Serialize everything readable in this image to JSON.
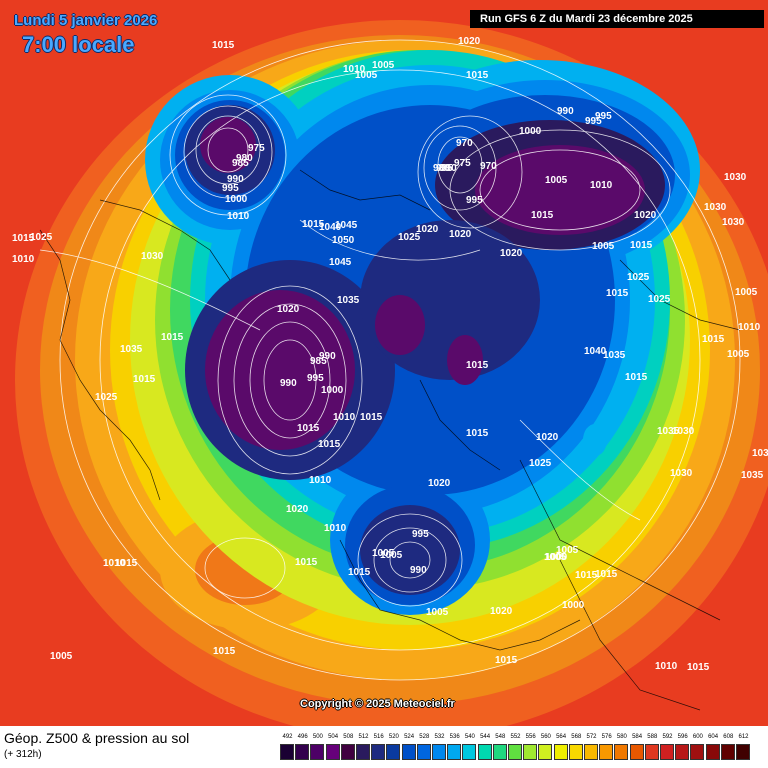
{
  "header": {
    "date_label": "Lundi 5 janvier 2026",
    "time_label": "7:00 locale",
    "run_label": "Run GFS 6 Z du Mardi 23 décembre 2025"
  },
  "footer": {
    "title": "Géop. Z500 & pression au sol",
    "subtitle": "(+ 312h)",
    "copyright": "Copyright © 2025 Meteociel.fr"
  },
  "legend": {
    "labels": [
      "492",
      "496",
      "500",
      "504",
      "508",
      "512",
      "516",
      "520",
      "524",
      "528",
      "532",
      "536",
      "540",
      "544",
      "548",
      "552",
      "556",
      "560",
      "564",
      "568",
      "572",
      "576",
      "580",
      "584",
      "588",
      "592",
      "596",
      "600",
      "604",
      "608",
      "612"
    ],
    "colors": [
      "#1a0033",
      "#33004d",
      "#4d0066",
      "#66007a",
      "#400040",
      "#2a1a5e",
      "#1e2a80",
      "#0a3aa0",
      "#0050c8",
      "#0066e0",
      "#0088ee",
      "#00a8f0",
      "#00c8e0",
      "#00d8b0",
      "#20d880",
      "#60e040",
      "#a0e830",
      "#d0f020",
      "#f0f000",
      "#f8d800",
      "#f8b800",
      "#f89800",
      "#f07800",
      "#e85800",
      "#e03820",
      "#d02020",
      "#b81818",
      "#a01010",
      "#880808",
      "#600000",
      "#400000"
    ]
  },
  "pressure_labels": [
    "1015",
    "1020",
    "1010",
    "1005",
    "1005",
    "1015",
    "1000",
    "990",
    "995",
    "995",
    "975",
    "980",
    "985",
    "990",
    "995",
    "1000",
    "1010",
    "970",
    "975",
    "980",
    "985",
    "990",
    "970",
    "995",
    "1005",
    "1010",
    "1015",
    "1020",
    "1030",
    "1015",
    "1030",
    "1020",
    "1015",
    "1040",
    "1050",
    "1045",
    "1025",
    "1020",
    "1030",
    "1015",
    "1025",
    "1010",
    "1030",
    "1015",
    "1035",
    "1005",
    "1010",
    "1005",
    "1015",
    "1005",
    "1020",
    "990",
    "985",
    "990",
    "995",
    "1000",
    "1010",
    "1015",
    "1025",
    "1015",
    "1025",
    "1040",
    "1035",
    "1045",
    "1035",
    "1015",
    "1020",
    "1015",
    "1025",
    "1035",
    "1030",
    "1020",
    "1025",
    "1015",
    "1030",
    "1035",
    "1035",
    "1015",
    "1020",
    "995",
    "1005",
    "1000",
    "990",
    "1015",
    "1005",
    "1005",
    "1015",
    "1015",
    "1000",
    "1005",
    "1005",
    "1020",
    "1015",
    "1010",
    "1015",
    "1015",
    "1020",
    "1010",
    "1015",
    "1015",
    "1010",
    "1005",
    "1015",
    "1010",
    "1015"
  ],
  "colors": {
    "run_box_bg": "#000000",
    "title_text": "#4aa8ff",
    "isobar": "#ffffff"
  }
}
